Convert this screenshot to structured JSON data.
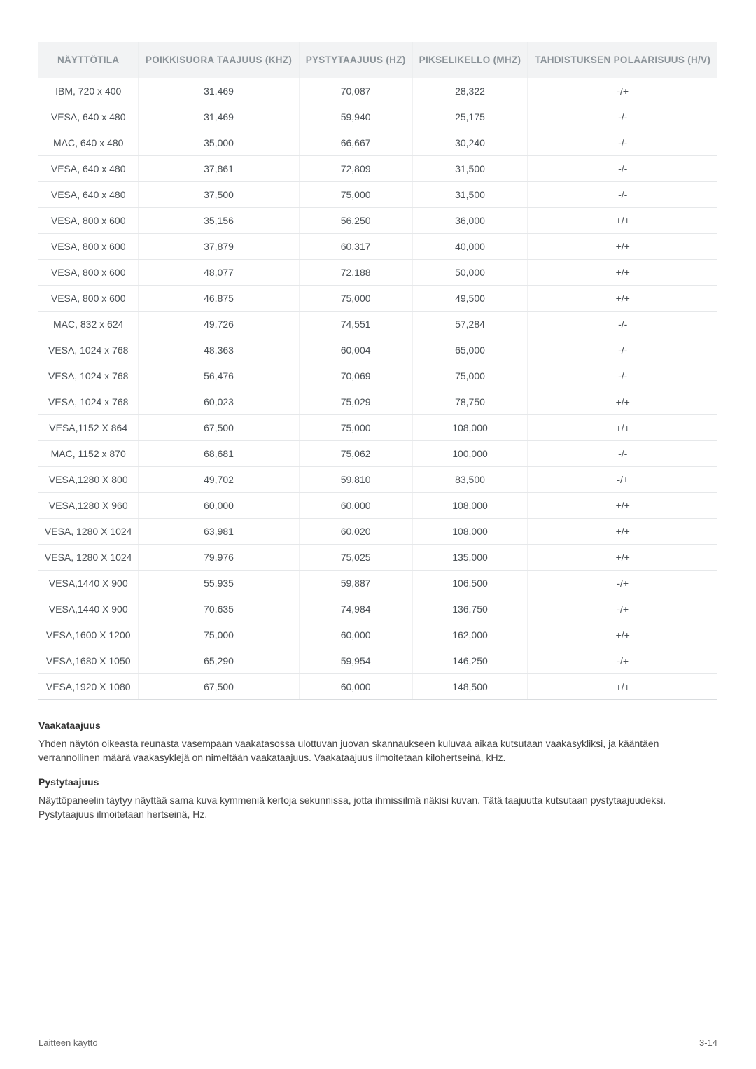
{
  "table": {
    "columns": [
      "NÄYTTÖTILA",
      "POIKKISUORA TAAJUUS (KHZ)",
      "PYSTYTAAJUUS (HZ)",
      "PIKSELIKELLO (MHZ)",
      "TAHDISTUKSEN POLAARISUUS (H/V)"
    ],
    "rows": [
      [
        "IBM, 720 x 400",
        "31,469",
        "70,087",
        "28,322",
        "-/+"
      ],
      [
        "VESA, 640 x 480",
        "31,469",
        "59,940",
        "25,175",
        "-/-"
      ],
      [
        "MAC, 640 x 480",
        "35,000",
        "66,667",
        "30,240",
        "-/-"
      ],
      [
        "VESA, 640 x 480",
        "37,861",
        "72,809",
        "31,500",
        "-/-"
      ],
      [
        "VESA, 640 x 480",
        "37,500",
        "75,000",
        "31,500",
        "-/-"
      ],
      [
        "VESA, 800 x 600",
        "35,156",
        "56,250",
        "36,000",
        "+/+"
      ],
      [
        "VESA, 800 x 600",
        "37,879",
        "60,317",
        "40,000",
        "+/+"
      ],
      [
        "VESA, 800 x 600",
        "48,077",
        "72,188",
        "50,000",
        "+/+"
      ],
      [
        "VESA, 800 x 600",
        "46,875",
        "75,000",
        "49,500",
        "+/+"
      ],
      [
        "MAC, 832 x 624",
        "49,726",
        "74,551",
        "57,284",
        "-/-"
      ],
      [
        "VESA, 1024 x 768",
        "48,363",
        "60,004",
        "65,000",
        "-/-"
      ],
      [
        "VESA, 1024 x 768",
        "56,476",
        "70,069",
        "75,000",
        "-/-"
      ],
      [
        "VESA, 1024 x 768",
        "60,023",
        "75,029",
        "78,750",
        "+/+"
      ],
      [
        "VESA,1152 X 864",
        "67,500",
        "75,000",
        "108,000",
        "+/+"
      ],
      [
        "MAC, 1152 x 870",
        "68,681",
        "75,062",
        "100,000",
        "-/-"
      ],
      [
        "VESA,1280 X 800",
        "49,702",
        "59,810",
        "83,500",
        "-/+"
      ],
      [
        "VESA,1280 X 960",
        "60,000",
        "60,000",
        "108,000",
        "+/+"
      ],
      [
        "VESA, 1280 X 1024",
        "63,981",
        "60,020",
        "108,000",
        "+/+"
      ],
      [
        "VESA, 1280 X 1024",
        "79,976",
        "75,025",
        "135,000",
        "+/+"
      ],
      [
        "VESA,1440 X 900",
        "55,935",
        "59,887",
        "106,500",
        "-/+"
      ],
      [
        "VESA,1440 X 900",
        "70,635",
        "74,984",
        "136,750",
        "-/+"
      ],
      [
        "VESA,1600 X 1200",
        "75,000",
        "60,000",
        "162,000",
        "+/+"
      ],
      [
        "VESA,1680 X 1050",
        "65,290",
        "59,954",
        "146,250",
        "-/+"
      ],
      [
        "VESA,1920 X 1080",
        "67,500",
        "60,000",
        "148,500",
        "+/+"
      ]
    ],
    "header_bg": "#f2f3f4",
    "header_color": "#8a9298",
    "cell_color": "#4a5055",
    "border_color": "#e6e8ea",
    "col_widths": [
      "20%",
      "20%",
      "20%",
      "20%",
      "20%"
    ]
  },
  "sections": {
    "h1_title": "Vaakataajuus",
    "h1_body": "Yhden näytön oikeasta reunasta vasempaan vaakatasossa ulottuvan juovan skannaukseen kuluvaa aikaa kutsutaan vaakasykliksi, ja kääntäen verrannollinen määrä vaakasyklejä on nimeltään vaakataajuus. Vaakataajuus ilmoitetaan kilohertseinä, kHz.",
    "h2_title": "Pystytaajuus",
    "h2_body": "Näyttöpaneelin täytyy näyttää sama kuva kymmeniä kertoja sekunnissa, jotta ihmissilmä näkisi kuvan. Tätä taajuutta kutsutaan pystytaajuudeksi. Pystytaajuus ilmoitetaan hertseinä, Hz."
  },
  "footer": {
    "left": "Laitteen käyttö",
    "right": "3-14"
  }
}
